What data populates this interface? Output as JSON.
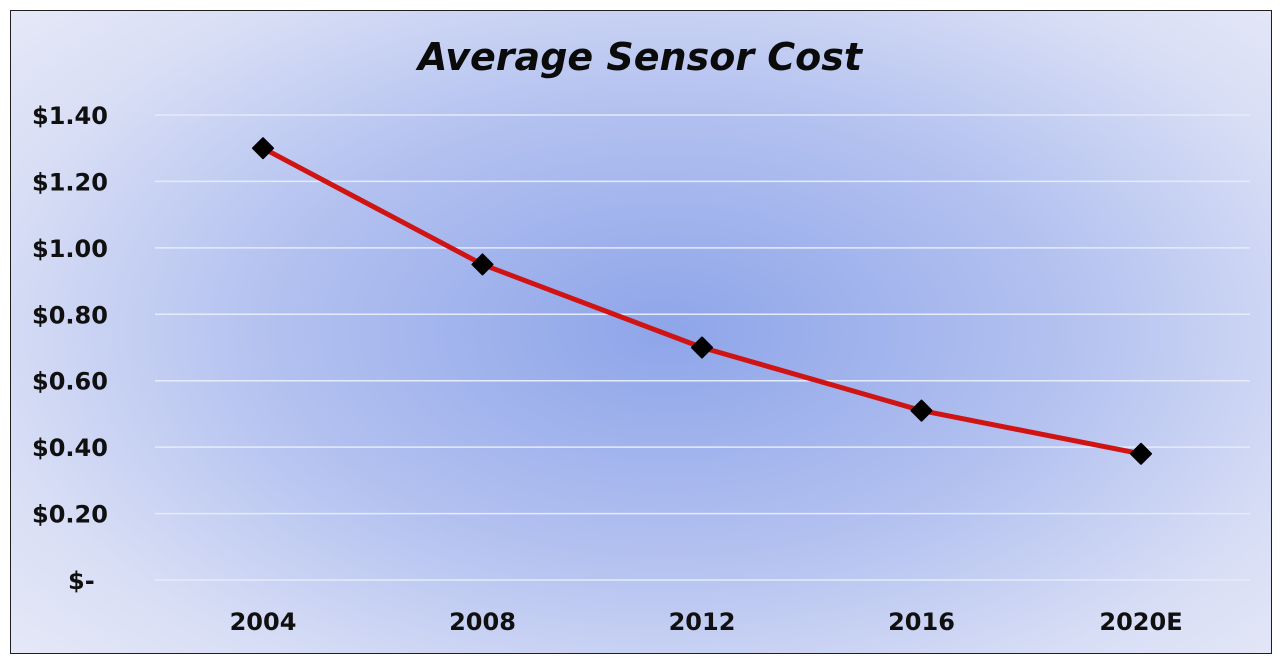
{
  "chart_data": {
    "type": "line",
    "title": "Average Sensor Cost",
    "xlabel": "",
    "ylabel": "",
    "categories": [
      "2004",
      "2008",
      "2012",
      "2016",
      "2020E"
    ],
    "series": [
      {
        "name": "Average Sensor Cost",
        "values": [
          1.3,
          0.95,
          0.7,
          0.51,
          0.38
        ]
      }
    ],
    "ylim": [
      0,
      1.4
    ],
    "y_ticks": [
      {
        "value": 0.0,
        "label": "$-"
      },
      {
        "value": 0.2,
        "label": "$0.20"
      },
      {
        "value": 0.4,
        "label": "$0.40"
      },
      {
        "value": 0.6,
        "label": "$0.60"
      },
      {
        "value": 0.8,
        "label": "$0.80"
      },
      {
        "value": 1.0,
        "label": "$1.00"
      },
      {
        "value": 1.2,
        "label": "$1.20"
      },
      {
        "value": 1.4,
        "label": "$1.40"
      }
    ],
    "grid": true,
    "legend": "none",
    "colors": {
      "line": "#d01414",
      "marker": "#000000",
      "grid": "#e6ebfa"
    }
  }
}
